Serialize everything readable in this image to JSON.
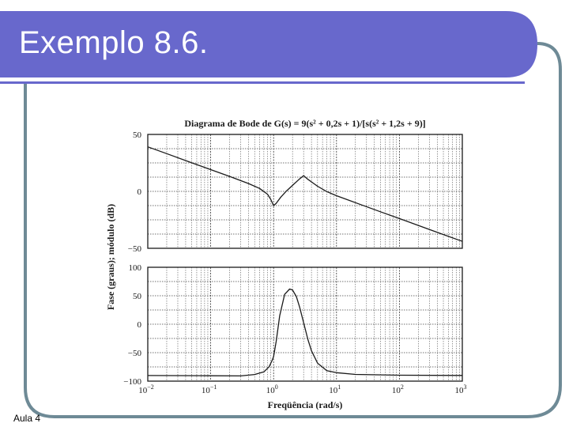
{
  "slide": {
    "title": "Exemplo 8.6.",
    "footer": "Aula 4"
  },
  "theme": {
    "banner_color": "#6868cc",
    "frame_color": "#6e8a96",
    "ink": "#1a1a1a"
  },
  "chart_data": {
    "type": "line",
    "title": "Diagrama de Bode de G(s) = 9(s² + 0,2s + 1)/[s(s² + 1,2s + 9)]",
    "xlabel": "Freqüência (rad/s)",
    "ylabel": "Fase (graus); módulo (dB)",
    "x_scale": "log",
    "xlim": [
      0.01,
      1000
    ],
    "x_ticks": [
      {
        "value": 0.01,
        "base": "10",
        "exp": "−2"
      },
      {
        "value": 0.1,
        "base": "10",
        "exp": "−1"
      },
      {
        "value": 1,
        "base": "10",
        "exp": "0"
      },
      {
        "value": 10,
        "base": "10",
        "exp": "1"
      },
      {
        "value": 100,
        "base": "10",
        "exp": "2"
      },
      {
        "value": 1000,
        "base": "10",
        "exp": "3"
      }
    ],
    "grid": true,
    "subplots": [
      {
        "name": "magnitude",
        "ylim": [
          -50,
          50
        ],
        "y_ticks": [
          "50",
          "0",
          "−50"
        ],
        "y_tick_values": [
          50,
          0,
          -50
        ],
        "series": [
          {
            "x": [
              0.01,
              0.02,
              0.05,
              0.1,
              0.2,
              0.4,
              0.6,
              0.8,
              0.9,
              1.0,
              1.1,
              1.3,
              1.6,
              2.0,
              2.5,
              3.0,
              3.5,
              4.0,
              5.0,
              7.0,
              10,
              20,
              50,
              100,
              200,
              500,
              1000
            ],
            "y": [
              39.1,
              33.1,
              25.1,
              19.1,
              13.1,
              6.9,
              2.6,
              -2.5,
              -7.0,
              -12.6,
              -10.5,
              -5.1,
              0.3,
              5.3,
              10.2,
              13.8,
              10.6,
              8.3,
              4.5,
              -0.2,
              -3.8,
              -9.9,
              -17.9,
              -23.9,
              -29.9,
              -37.9,
              -43.9
            ]
          }
        ]
      },
      {
        "name": "phase",
        "ylim": [
          -100,
          100
        ],
        "y_ticks": [
          "100",
          "50",
          "0",
          "−50",
          "−100"
        ],
        "y_tick_values": [
          100,
          50,
          0,
          -50,
          -100
        ],
        "series": [
          {
            "x": [
              0.01,
              0.1,
              0.3,
              0.5,
              0.7,
              0.85,
              0.95,
              1.0,
              1.1,
              1.25,
              1.5,
              1.8,
              2.0,
              2.3,
              2.6,
              3.0,
              3.5,
              4.0,
              5.0,
              7.0,
              10,
              20,
              100,
              1000
            ],
            "y": [
              -90.1,
              -90.5,
              -90.8,
              -88.4,
              -83.7,
              -74.6,
              -63.3,
              -56.8,
              -30.0,
              14.7,
              52.5,
              61.8,
              60.0,
              48.6,
              29.7,
              2.6,
              -26.3,
              -46.6,
              -68.4,
              -81.6,
              -85.2,
              -88.2,
              -89.6,
              -90.0
            ]
          }
        ]
      }
    ]
  }
}
